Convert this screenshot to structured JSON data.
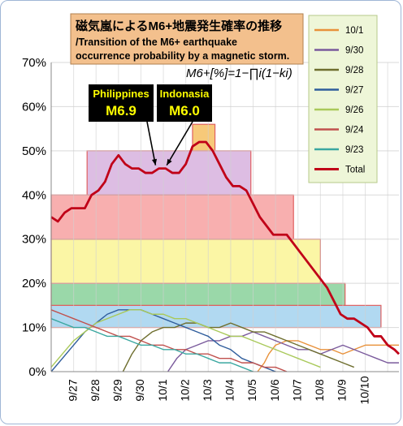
{
  "chart_data": {
    "type": "line",
    "title_jp": "磁気嵐によるM6+地震発生確率の推移",
    "title_en_line1": "/Transition of the M6+ earthquake",
    "title_en_line2": "occurrence probability by a magnetic storm.",
    "formula": "M6+[%]=1−∏i(1−ki)",
    "y_ticks": [
      "0%",
      "10%",
      "20%",
      "30%",
      "40%",
      "50%",
      "60%",
      "70%"
    ],
    "ylim": [
      0,
      70
    ],
    "x_ticks": [
      "9/27",
      "9/28",
      "9/29",
      "9/30",
      "10/1",
      "10/2",
      "10/3",
      "10/4",
      "10/5",
      "10/6",
      "10/7",
      "10/8",
      "10/9",
      "10/10"
    ],
    "xlim": [
      0,
      15.5
    ],
    "grid": true,
    "legend_position": "right",
    "annotations": [
      {
        "place": "Philippines",
        "magnitude": "M6.9",
        "day": 4.65
      },
      {
        "place": "Indonasia",
        "magnitude": "M6.0",
        "day": 5.15
      }
    ],
    "bands": [
      {
        "x0": 0,
        "x1": 14.7,
        "y0": 10,
        "y1": 15,
        "fill": "#a9d5f0",
        "stroke": "#e06060"
      },
      {
        "x0": 0,
        "x1": 13.1,
        "y0": 15,
        "y1": 20,
        "fill": "#8fd4a0",
        "stroke": "#e06060"
      },
      {
        "x0": 0,
        "x1": 12.0,
        "y0": 20,
        "y1": 30,
        "fill": "#fbf59b",
        "stroke": "#e06060"
      },
      {
        "x0": 0,
        "x1": 10.8,
        "y0": 30,
        "y1": 40,
        "fill": "#f7a6a6",
        "stroke": "#e06060"
      },
      {
        "x0": 1.6,
        "x1": 8.9,
        "y0": 40,
        "y1": 50,
        "fill": "#d9b6e0",
        "stroke": "#e06060"
      },
      {
        "x0": 6.3,
        "x1": 7.3,
        "y0": 50,
        "y1": 56,
        "fill": "#f6c36a",
        "stroke": "#e06060"
      }
    ],
    "series": [
      {
        "name": "10/1",
        "color": "#e8913a",
        "width": 1.4,
        "x": [
          9.2,
          9.5,
          9.7,
          10.0,
          10.5,
          11.0,
          11.5,
          12.0,
          12.5,
          13.0,
          13.5,
          14.0,
          14.5,
          15.0,
          15.5
        ],
        "y": [
          0,
          2,
          4,
          6,
          7,
          7,
          6,
          5,
          5,
          4,
          5,
          6,
          6,
          6,
          6
        ]
      },
      {
        "name": "9/30",
        "color": "#7a5a9c",
        "width": 1.4,
        "x": [
          5.2,
          5.6,
          6.0,
          6.5,
          7.0,
          7.5,
          8.0,
          8.5,
          9.0,
          9.5,
          10.0,
          10.5,
          11.0,
          11.5,
          12.0,
          12.5,
          13.0,
          13.5,
          14.0,
          14.5,
          15.0,
          15.5
        ],
        "y": [
          0,
          3,
          5,
          6,
          7,
          7,
          8,
          8,
          9,
          8,
          7,
          6,
          5,
          5,
          4,
          5,
          6,
          5,
          4,
          3,
          2,
          2
        ]
      },
      {
        "name": "9/28",
        "color": "#6e6e2e",
        "width": 1.4,
        "x": [
          3.2,
          3.6,
          4.0,
          4.5,
          5.0,
          5.5,
          6.0,
          6.5,
          7.0,
          7.5,
          8.0,
          8.5,
          9.0,
          9.5,
          10.0,
          10.5,
          11.0,
          11.5,
          12.0,
          12.5,
          13.0,
          13.5
        ],
        "y": [
          0,
          4,
          7,
          9,
          10,
          10,
          11,
          11,
          10,
          10,
          11,
          10,
          9,
          9,
          8,
          7,
          6,
          5,
          4,
          3,
          2,
          1
        ]
      },
      {
        "name": "9/27",
        "color": "#2f5d9c",
        "width": 1.4,
        "x": [
          0,
          0.5,
          1.0,
          1.5,
          2.0,
          2.5,
          3.0,
          3.5,
          4.0,
          4.5,
          5.0,
          5.5,
          6.0,
          6.5,
          7.0,
          7.5,
          8.0,
          8.5,
          9.0,
          9.5,
          10.0
        ],
        "y": [
          0,
          3,
          6,
          9,
          11,
          13,
          14,
          14,
          14,
          13,
          12,
          11,
          10,
          9,
          8,
          6,
          5,
          3,
          2,
          1,
          0
        ]
      },
      {
        "name": "9/26",
        "color": "#a9c95a",
        "width": 1.4,
        "x": [
          0,
          0.5,
          1.0,
          1.5,
          2.0,
          2.5,
          3.0,
          3.5,
          4.0,
          4.5,
          5.0,
          5.5,
          6.0,
          6.5,
          7.0,
          7.5,
          8.0,
          8.5,
          9.0,
          9.5,
          10.0,
          10.5,
          11.0,
          11.5,
          12.0
        ],
        "y": [
          1,
          4,
          7,
          9,
          11,
          12,
          13,
          14,
          14,
          13,
          13,
          12,
          12,
          11,
          10,
          9,
          8,
          8,
          7,
          6,
          5,
          4,
          3,
          2,
          1
        ]
      },
      {
        "name": "9/24",
        "color": "#c0504d",
        "width": 1.4,
        "x": [
          0,
          0.5,
          1.0,
          1.5,
          2.0,
          2.5,
          3.0,
          3.5,
          4.0,
          4.5,
          5.0,
          5.5,
          6.0,
          6.5,
          7.0,
          7.5,
          8.0,
          8.5,
          9.0,
          9.5,
          10.0,
          10.5
        ],
        "y": [
          14,
          13,
          12,
          11,
          10,
          9,
          8,
          8,
          7,
          6,
          6,
          5,
          5,
          4,
          4,
          3,
          3,
          2,
          2,
          1,
          1,
          0
        ]
      },
      {
        "name": "9/23",
        "color": "#3aa7a0",
        "width": 1.4,
        "x": [
          0,
          0.5,
          1.0,
          1.5,
          2.0,
          2.5,
          3.0,
          3.5,
          4.0,
          4.5,
          5.0,
          5.5,
          6.0,
          6.5,
          7.0,
          7.5,
          8.0,
          8.5,
          9.0
        ],
        "y": [
          12,
          11,
          10,
          10,
          9,
          8,
          8,
          7,
          6,
          6,
          5,
          5,
          4,
          4,
          3,
          2,
          2,
          1,
          0
        ]
      },
      {
        "name": "Total",
        "color": "#c00018",
        "width": 2.8,
        "x": [
          0,
          0.3,
          0.6,
          0.9,
          1.2,
          1.5,
          1.8,
          2.1,
          2.4,
          2.7,
          3.0,
          3.3,
          3.6,
          3.9,
          4.2,
          4.5,
          4.8,
          5.1,
          5.4,
          5.7,
          6.0,
          6.3,
          6.6,
          6.9,
          7.2,
          7.5,
          7.8,
          8.1,
          8.4,
          8.7,
          9.0,
          9.3,
          9.6,
          9.9,
          10.2,
          10.5,
          10.8,
          11.1,
          11.4,
          11.7,
          12.0,
          12.3,
          12.6,
          12.9,
          13.2,
          13.5,
          13.8,
          14.1,
          14.4,
          14.7,
          15.0,
          15.3,
          15.5
        ],
        "y": [
          35,
          34,
          36,
          37,
          37,
          37,
          40,
          41,
          43,
          47,
          49,
          47,
          46,
          46,
          45,
          45,
          46,
          46,
          45,
          45,
          47,
          51,
          52,
          52,
          50,
          47,
          44,
          42,
          42,
          41,
          38,
          35,
          33,
          31,
          31,
          31,
          29,
          27,
          25,
          23,
          21,
          19,
          16,
          13,
          12,
          12,
          11,
          10,
          8,
          8,
          6,
          5,
          4
        ]
      }
    ]
  }
}
